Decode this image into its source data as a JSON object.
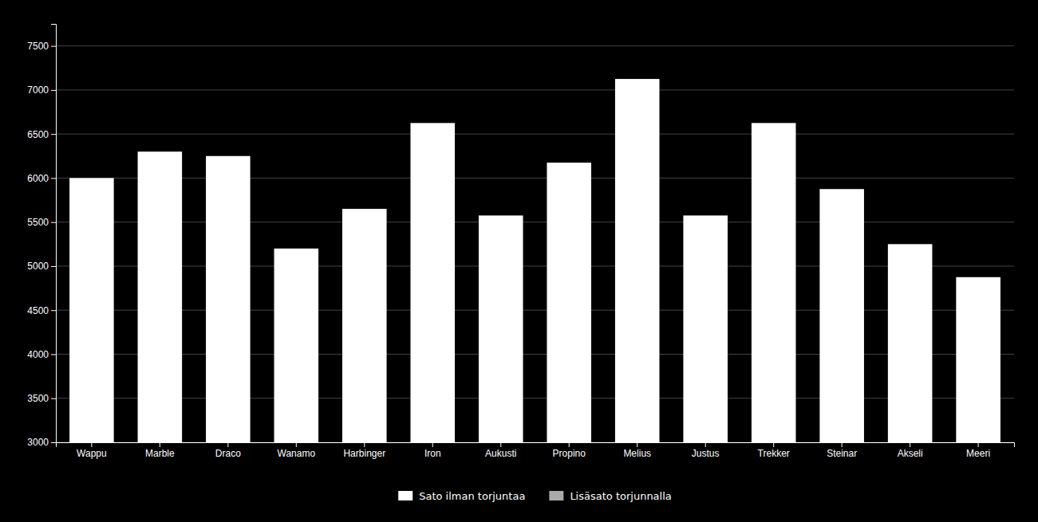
{
  "chart_data": {
    "type": "bar",
    "categories": [
      "Wappu",
      "Marble",
      "Draco",
      "Wanamo",
      "Harbinger",
      "Iron",
      "Aukusti",
      "Propino",
      "Melius",
      "Justus",
      "Trekker",
      "Steinar",
      "Akseli",
      "Meeri"
    ],
    "series": [
      {
        "name": "Sato ilman torjuntaa",
        "color": "#ffffff",
        "values": [
          6000,
          6300,
          6250,
          5200,
          5650,
          6625,
          5575,
          6175,
          7125,
          5575,
          6625,
          5875,
          5250,
          4875
        ]
      },
      {
        "name": "Lisäsato torjunnalla",
        "color": "#aaaaaa",
        "values": [
          null,
          null,
          null,
          null,
          null,
          null,
          null,
          null,
          null,
          null,
          null,
          null,
          null,
          null
        ]
      }
    ],
    "ylim": [
      3000,
      7750
    ],
    "yticks": [
      3000,
      3500,
      4000,
      4500,
      5000,
      5500,
      6000,
      6500,
      7000,
      7500
    ],
    "grid": true,
    "legend": "bottom"
  }
}
